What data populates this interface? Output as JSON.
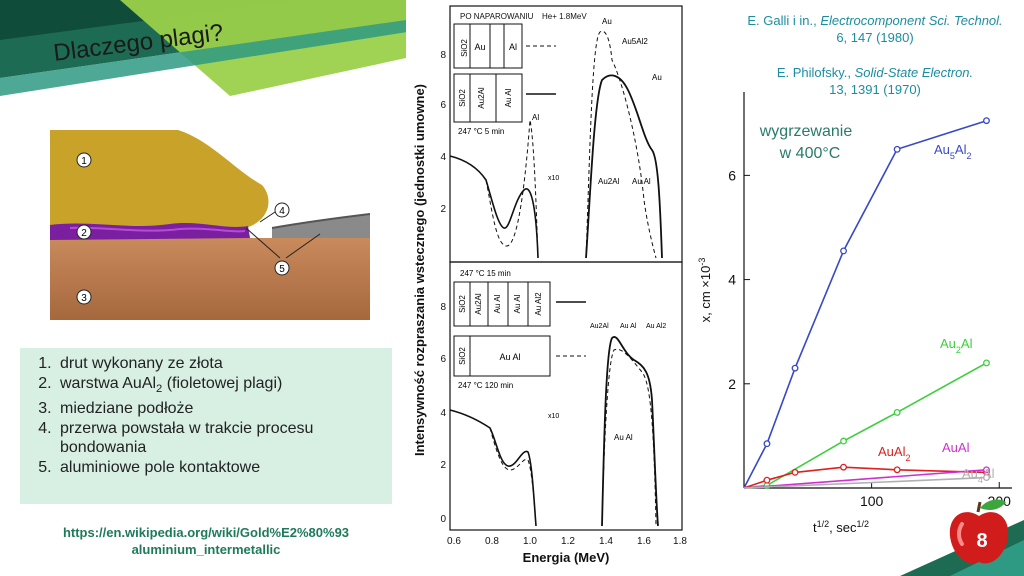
{
  "slide": {
    "title": "Dlaczego plagi?",
    "page_number": "8",
    "colors": {
      "green_dark": "#1d6b52",
      "green_light": "#9bd04a",
      "teal": "#2e9a83",
      "gold": "#c9a22a",
      "purple": "#7a1fa0",
      "copper": "#b87a4e"
    }
  },
  "diagram": {
    "callouts": [
      "1",
      "2",
      "3",
      "4",
      "5"
    ]
  },
  "legend": {
    "items": [
      "drut wykonany ze złota",
      "warstwa AuAl2 (fioletowej plagi)",
      "miedziane podłoże",
      "przerwa powstała w trakcie procesu bondowania",
      "aluminiowe pole kontaktowe"
    ]
  },
  "source": {
    "url_line1": "https://en.wikipedia.org/wiki/Gold%E2%80%93",
    "url_line2": "aluminium_intermetallic"
  },
  "references": {
    "ref1_authors": "E. Galli i in.,",
    "ref1_journal": "Electrocomponent Sci. Technol.",
    "ref1_details": "6, 147 (1980)",
    "ref2_authors": "E. Philofsky.,",
    "ref2_journal": "Solid-State Electron.",
    "ref2_details": "13, 1391 (1970)"
  },
  "rbs_figure": {
    "ylabel": "Intensywność rozpraszania wstecznego (jednostki umowne)",
    "xlabel": "Energia (MeV)",
    "x_ticks": [
      "0.6",
      "0.8",
      "1.0",
      "1.2",
      "1.4",
      "1.6",
      "1.8"
    ],
    "top_y_ticks": [
      "8",
      "6",
      "4",
      "2"
    ],
    "bottom_y_ticks": [
      "8",
      "6",
      "4",
      "2",
      "0"
    ],
    "top_labels": {
      "as_deposited": "PO NAPAROWANIU",
      "beam": "He+ 1.8MeV",
      "anneal": "247 °C 5 min",
      "x10": "x10",
      "au": "Au",
      "au2al": "Au2Al",
      "au5al2": "Au5Al2",
      "aual": "Au Al",
      "al": "Al",
      "sio2": "SiO2"
    },
    "bottom_labels": {
      "anneal1": "247 °C 15 min",
      "anneal2": "247 °C 120 min",
      "x10": "x10",
      "au2al": "Au2Al",
      "aual": "Au Al",
      "aual2": "Au Al2"
    }
  },
  "chart_data": {
    "type": "scatter",
    "title": "wygrzewanie w 400°C",
    "xlabel": "t^1/2, sec^1/2",
    "ylabel": "x, cm ×10^-3",
    "xlim": [
      0,
      210
    ],
    "ylim": [
      0,
      7.6
    ],
    "x_ticks": [
      100,
      200
    ],
    "y_ticks": [
      2,
      4,
      6
    ],
    "series": [
      {
        "name": "Au5Al2",
        "color": "#3848c8",
        "points": [
          [
            18,
            0.85
          ],
          [
            40,
            2.3
          ],
          [
            78,
            4.55
          ],
          [
            120,
            6.5
          ],
          [
            190,
            7.05
          ]
        ]
      },
      {
        "name": "Au2Al",
        "color": "#3ccf3c",
        "points": [
          [
            18,
            0.05
          ],
          [
            78,
            0.9
          ],
          [
            120,
            1.45
          ],
          [
            190,
            2.4
          ]
        ]
      },
      {
        "name": "AuAl2",
        "color": "#e02020",
        "points": [
          [
            18,
            0.15
          ],
          [
            40,
            0.3
          ],
          [
            78,
            0.4
          ],
          [
            120,
            0.35
          ],
          [
            190,
            0.3
          ]
        ]
      },
      {
        "name": "AuAl",
        "color": "#d030d0",
        "points": [
          [
            190,
            0.35
          ]
        ]
      },
      {
        "name": "Au4Al",
        "color": "#b0b0b0",
        "points": [
          [
            190,
            0.2
          ]
        ]
      }
    ]
  }
}
